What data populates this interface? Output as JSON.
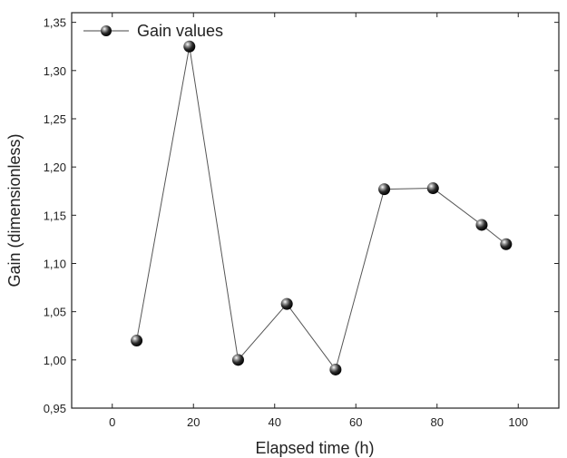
{
  "chart_data": {
    "type": "line",
    "xlabel": "Elapsed time (h)",
    "ylabel": "Gain (dimensionless)",
    "xlim": [
      -10,
      110
    ],
    "ylim": [
      0.95,
      1.36
    ],
    "x_ticks": [
      0,
      20,
      40,
      60,
      80,
      100
    ],
    "x_tick_labels": [
      "0",
      "20",
      "40",
      "60",
      "80",
      "100"
    ],
    "y_ticks": [
      0.95,
      1.0,
      1.05,
      1.1,
      1.15,
      1.2,
      1.25,
      1.3,
      1.35
    ],
    "y_tick_labels": [
      "0,95",
      "1,00",
      "1,05",
      "1,10",
      "1,15",
      "1,20",
      "1,25",
      "1,30",
      "1,35"
    ],
    "grid": false,
    "legend_position": "top-left",
    "series": [
      {
        "name": "Gain values",
        "color": "#111111",
        "marker": "sphere",
        "x": [
          6,
          19,
          31,
          43,
          55,
          67,
          79,
          91,
          97
        ],
        "y": [
          1.02,
          1.325,
          1.0,
          1.058,
          0.99,
          1.177,
          1.178,
          1.14,
          1.12
        ]
      }
    ]
  }
}
